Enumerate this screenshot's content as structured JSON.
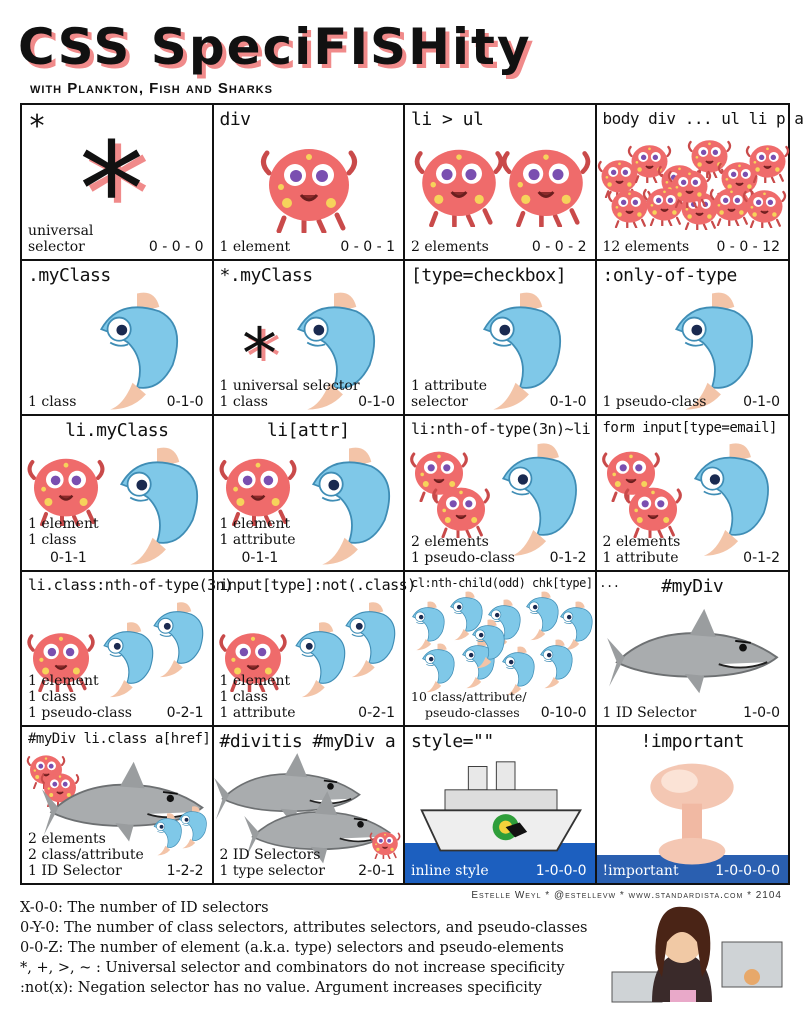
{
  "title": "CSS SpeciFISHity",
  "subtitle": "with Plankton, Fish and Sharks",
  "credits": "Estelle Weyl * @estellevw * www.standardista.com * 2104",
  "cells": [
    {
      "selector": "*",
      "desc": [
        "universal",
        "selector"
      ],
      "score": "0 - 0 - 0"
    },
    {
      "selector": "div",
      "desc": [
        "1 element"
      ],
      "score": "0 - 0 - 1"
    },
    {
      "selector": "li > ul",
      "desc": [
        "2 elements"
      ],
      "score": "0 - 0 - 2"
    },
    {
      "selector": "body div ... ul li p a",
      "desc": [
        "12 elements"
      ],
      "score": "0 - 0 - 12"
    },
    {
      "selector": ".myClass",
      "desc": [
        "1 class"
      ],
      "score": "0-1-0"
    },
    {
      "selector": "*.myClass",
      "desc": [
        "1 universal selector",
        "1 class"
      ],
      "score": "0-1-0"
    },
    {
      "selector": "[type=checkbox]",
      "desc": [
        "1 attribute",
        "selector"
      ],
      "score": "0-1-0"
    },
    {
      "selector": ":only-of-type",
      "desc": [
        "1 pseudo-class"
      ],
      "score": "0-1-0"
    },
    {
      "selector": "li.myClass",
      "desc": [
        "1 element",
        "1 class"
      ],
      "score": "0-1-1"
    },
    {
      "selector": "li[attr]",
      "desc": [
        "1 element",
        "1 attribute"
      ],
      "score": "0-1-1"
    },
    {
      "selector": "li:nth-of-type(3n)~li",
      "desc": [
        "2 elements",
        "1 pseudo-class"
      ],
      "score": "0-1-2"
    },
    {
      "selector": "form input[type=email]",
      "desc": [
        "2 elements",
        "1 attribute"
      ],
      "score": "0-1-2"
    },
    {
      "selector": "li.class:nth-of-type(3n)",
      "desc": [
        "1 element",
        "1 class",
        "1 pseudo-class"
      ],
      "score": "0-2-1"
    },
    {
      "selector": "input[type]:not(.class)",
      "desc": [
        "1 element",
        "1 class",
        "1 attribute"
      ],
      "score": "0-2-1"
    },
    {
      "selector": "cl:nth-child(odd) chk[type] ...",
      "desc": [
        "10 class/attribute/",
        "pseudo-classes"
      ],
      "score": "0-10-0"
    },
    {
      "selector": "#myDiv",
      "desc": [
        "1 ID Selector"
      ],
      "score": "1-0-0"
    },
    {
      "selector": "#myDiv li.class a[href]",
      "desc": [
        "2 elements",
        "2 class/attribute",
        "1 ID Selector"
      ],
      "score": "1-2-2"
    },
    {
      "selector": "#divitis #myDiv a",
      "desc": [
        "2 ID Selectors",
        "1 type selector"
      ],
      "score": "2-0-1"
    },
    {
      "selector": "style=\"\"",
      "desc": [
        "inline style"
      ],
      "score": "1-0-0-0"
    },
    {
      "selector": "!important",
      "desc": [
        "!important"
      ],
      "score": "1-0-0-0-0"
    }
  ],
  "legend": [
    "X-0-0: The number of ID selectors",
    "0-Y-0: The number of class selectors, attributes selectors, and pseudo-classes",
    "0-0-Z: The number of element (a.k.a. type) selectors and pseudo-elements",
    "*, +, >, ~ : Universal selector and combinators do not increase specificity",
    ":not(x): Negation selector has no value. Argument increases specificity"
  ],
  "colors": {
    "plankton": "#ef6b6b",
    "fish": "#7fc8e8",
    "shark": "#a9acae",
    "accent": "#f08a8a",
    "sea": "#1c5fbf"
  }
}
